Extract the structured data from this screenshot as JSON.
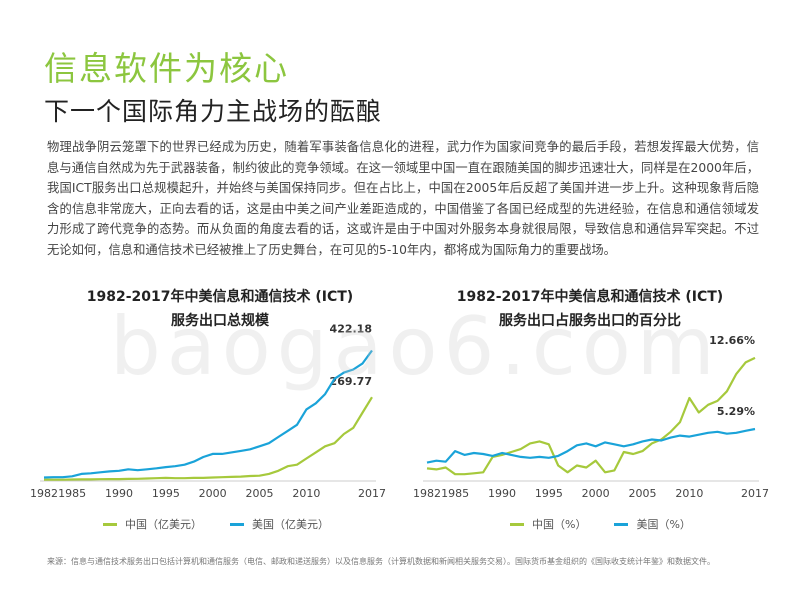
{
  "header": {
    "title": "信息软件为核心",
    "subtitle": "下一个国际角力主战场的酝酿"
  },
  "body_text": "物理战争阴云笼罩下的世界已经成为历史，随着军事装备信息化的进程，武力作为国家间竞争的最后手段，若想发挥最大优势，信息与通信自然成为先于武器装备，制约彼此的竞争领域。在这一领域里中国一直在跟随美国的脚步迅速壮大，同样是在2000年后，我国ICT服务出口总规模起升，并始终与美国保持同步。但在占比上，中国在2005年后反超了美国并进一步上升。这种现象背后隐含的信息非常庞大，正向去看的话，这是由中美之间产业差距造成的，中国借鉴了各国已经成型的先进经验，在信息和通信领域发力形成了跨代竞争的态势。而从负面的角度去看的话，这或许是由于中国对外服务本身就很局限，导致信息和通信异军突起。不过无论如何，信息和通信技术已经被推上了历史舞台，在可见的5-10年内，都将成为国际角力的重要战场。",
  "watermark": "baogao6.com",
  "footnote": "来源：信息与通信技术服务出口包括计算机和通信服务（电信、邮政和递送服务）以及信息服务（计算机数据和新闻相关服务交易）。国际货币基金组织的《国际收支统计年鉴》和数据文件。",
  "chart_data": [
    {
      "type": "line",
      "title_line1": "1982-2017年中美信息和通信技术 (ICT)",
      "title_line2": "服务出口总规模",
      "x_tick_labels": [
        "1982",
        "1985",
        "1990",
        "1995",
        "2000",
        "2005",
        "2010",
        "2017"
      ],
      "x_ticks": [
        1982,
        1985,
        1990,
        1995,
        2000,
        2005,
        2010,
        2017
      ],
      "xlim": [
        1982,
        2017
      ],
      "ylim": [
        0,
        440
      ],
      "x": [
        1982,
        1983,
        1984,
        1985,
        1986,
        1987,
        1988,
        1989,
        1990,
        1991,
        1992,
        1993,
        1994,
        1995,
        1996,
        1997,
        1998,
        1999,
        2000,
        2001,
        2002,
        2003,
        2004,
        2005,
        2006,
        2007,
        2008,
        2009,
        2010,
        2011,
        2012,
        2013,
        2014,
        2015,
        2016,
        2017
      ],
      "series": [
        {
          "name": "中国（亿美元）",
          "color": "#a6c93c",
          "end_label": "269.77",
          "values": [
            1,
            1,
            1,
            1.5,
            2,
            2,
            2.5,
            3,
            3,
            3.5,
            4,
            5,
            6,
            7,
            6,
            6,
            7,
            7,
            8,
            9,
            10,
            11,
            13,
            14,
            20,
            30,
            45,
            50,
            70,
            90,
            110,
            120,
            150,
            170,
            220,
            269.77
          ]
        },
        {
          "name": "美国（亿美元）",
          "color": "#1aa3d9",
          "end_label": "422.18",
          "values": [
            8,
            9,
            9,
            12,
            20,
            22,
            25,
            28,
            30,
            35,
            32,
            35,
            38,
            42,
            45,
            50,
            60,
            75,
            85,
            85,
            90,
            95,
            100,
            110,
            120,
            140,
            160,
            180,
            230,
            250,
            280,
            330,
            350,
            360,
            380,
            422.18
          ]
        }
      ]
    },
    {
      "type": "line",
      "title_line1": "1982-2017年中美信息和通信技术 (ICT)",
      "title_line2": "服务出口占服务出口的百分比",
      "x_tick_labels": [
        "1982",
        "1985",
        "1990",
        "1995",
        "2000",
        "2005",
        "2010",
        "2017"
      ],
      "x_ticks": [
        1982,
        1985,
        1990,
        1995,
        2000,
        2005,
        2010,
        2017
      ],
      "xlim": [
        1982,
        2017
      ],
      "ylim": [
        0,
        14
      ],
      "x": [
        1982,
        1983,
        1984,
        1985,
        1986,
        1987,
        1988,
        1989,
        1990,
        1991,
        1992,
        1993,
        1994,
        1995,
        1996,
        1997,
        1998,
        1999,
        2000,
        2001,
        2002,
        2003,
        2004,
        2005,
        2006,
        2007,
        2008,
        2009,
        2010,
        2011,
        2012,
        2013,
        2014,
        2015,
        2016,
        2017
      ],
      "series": [
        {
          "name": "中国（%）",
          "color": "#a6c93c",
          "end_label": "12.66%",
          "values": [
            1.2,
            1.1,
            1.3,
            0.6,
            0.6,
            0.7,
            0.8,
            2.4,
            2.6,
            2.9,
            3.2,
            3.8,
            4.0,
            3.7,
            1.5,
            0.8,
            1.5,
            1.3,
            2.0,
            0.8,
            1.0,
            2.9,
            2.7,
            3.0,
            3.8,
            4.2,
            5.0,
            6.0,
            8.5,
            7.0,
            7.8,
            8.2,
            9.2,
            11.0,
            12.2,
            12.66
          ]
        },
        {
          "name": "美国（%）",
          "color": "#1aa3d9",
          "end_label": "5.29%",
          "values": [
            1.8,
            2.0,
            1.9,
            3.0,
            2.6,
            2.8,
            2.7,
            2.5,
            2.8,
            2.6,
            2.4,
            2.3,
            2.4,
            2.3,
            2.5,
            3.0,
            3.6,
            3.8,
            3.5,
            3.9,
            3.7,
            3.5,
            3.7,
            4.0,
            4.2,
            4.1,
            4.4,
            4.6,
            4.5,
            4.7,
            4.9,
            5.0,
            4.8,
            4.9,
            5.1,
            5.29
          ]
        }
      ]
    }
  ]
}
